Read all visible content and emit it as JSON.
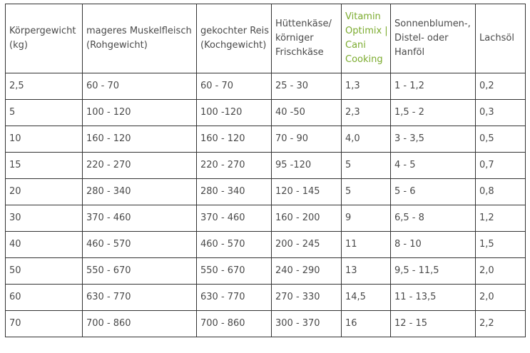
{
  "table": {
    "headers": [
      "Körpergewicht (kg)",
      "mageres Muskelfleisch (Rohgewicht)",
      "gekochter Reis (Kochgewicht)",
      "Hüttenkäse/ körniger Frischkäse",
      "Vitamin Optimix | Cani Cooking",
      "Sonnenblumen-, Distel- oder Hanföl",
      "Lachsöl"
    ],
    "rows": [
      [
        "2,5",
        "60 - 70",
        "60 - 70",
        "25 - 30",
        "1,3",
        "1 - 1,2",
        "0,2"
      ],
      [
        "5",
        "100 - 120",
        "100 -120",
        "40 -50",
        "2,3",
        "1,5 - 2",
        "0,3"
      ],
      [
        "10",
        "160 - 120",
        "160 - 120",
        "70 - 90",
        "4,0",
        "3 - 3,5",
        "0,5"
      ],
      [
        "15",
        "220 - 270",
        "220 - 270",
        "95 -120",
        "5",
        "4 - 5",
        "0,7"
      ],
      [
        "20",
        "280 - 340",
        "280 - 340",
        "120 - 145",
        "5",
        "5 - 6",
        "0,8"
      ],
      [
        "30",
        "370 - 460",
        "370 - 460",
        "160 - 200",
        "9",
        "6,5 - 8",
        "1,2"
      ],
      [
        "40",
        "460 - 570",
        "460 - 570",
        "200 - 245",
        "11",
        "8 - 10",
        "1,5"
      ],
      [
        "50",
        "550 - 670",
        "550 - 670",
        "240 - 290",
        "13",
        "9,5 - 11,5",
        "2,0"
      ],
      [
        "60",
        "630 - 770",
        "630 - 770",
        "270 - 330",
        "14,5",
        "11 - 13,5",
        "2,0"
      ],
      [
        "70",
        "700 - 860",
        "700 - 860",
        "300 - 370",
        "16",
        "12 - 15",
        "2,2"
      ]
    ]
  },
  "colors": {
    "accent_link": "#7bab2e",
    "text": "#4a4a4a",
    "border": "#333333"
  }
}
